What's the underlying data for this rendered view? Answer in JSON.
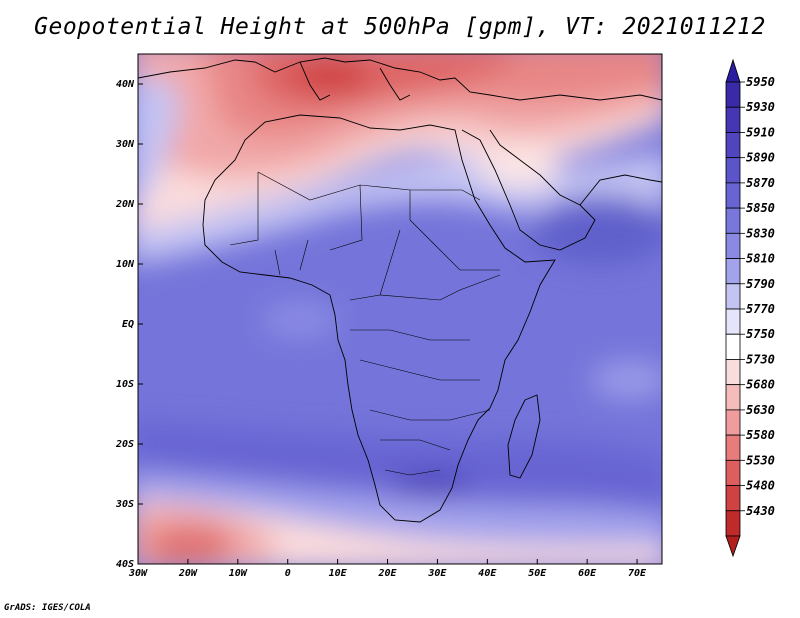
{
  "title": "Geopotential Height at 500hPa [gpm], VT: 2021011212",
  "credit": "GrADS: IGES/COLA",
  "map": {
    "lon_ticks": [
      {
        "value": -30,
        "label": "30W"
      },
      {
        "value": -20,
        "label": "20W"
      },
      {
        "value": -10,
        "label": "10W"
      },
      {
        "value": 0,
        "label": "0"
      },
      {
        "value": 10,
        "label": "10E"
      },
      {
        "value": 20,
        "label": "20E"
      },
      {
        "value": 30,
        "label": "30E"
      },
      {
        "value": 40,
        "label": "40E"
      },
      {
        "value": 50,
        "label": "50E"
      },
      {
        "value": 60,
        "label": "60E"
      },
      {
        "value": 70,
        "label": "70E"
      }
    ],
    "lat_ticks": [
      {
        "value": 40,
        "label": "40N"
      },
      {
        "value": 30,
        "label": "30N"
      },
      {
        "value": 20,
        "label": "20N"
      },
      {
        "value": 10,
        "label": "10N"
      },
      {
        "value": 0,
        "label": "EQ"
      },
      {
        "value": -10,
        "label": "10S"
      },
      {
        "value": -20,
        "label": "20S"
      },
      {
        "value": -30,
        "label": "30S"
      },
      {
        "value": -40,
        "label": "40S"
      }
    ],
    "lon_range": [
      -30,
      75
    ],
    "lat_range": [
      -40,
      45
    ]
  },
  "colorbar": {
    "levels": [
      {
        "label": "5950",
        "color": "#3a2aa8"
      },
      {
        "label": "5930",
        "color": "#4537b4"
      },
      {
        "label": "5910",
        "color": "#5045bf"
      },
      {
        "label": "5890",
        "color": "#5c55c9"
      },
      {
        "label": "5870",
        "color": "#6865d3"
      },
      {
        "label": "5850",
        "color": "#7878dc"
      },
      {
        "label": "5830",
        "color": "#8a8ae4"
      },
      {
        "label": "5810",
        "color": "#a3a3ec"
      },
      {
        "label": "5790",
        "color": "#c4c4f3"
      },
      {
        "label": "5770",
        "color": "#e4e4fa"
      },
      {
        "label": "5750",
        "color": "#ffffff"
      },
      {
        "label": "5730",
        "color": "#fbdcdc"
      },
      {
        "label": "5680",
        "color": "#f5bcbc"
      },
      {
        "label": "5630",
        "color": "#ee9c9c"
      },
      {
        "label": "5580",
        "color": "#e67c7c"
      },
      {
        "label": "5530",
        "color": "#dc5e5e"
      },
      {
        "label": "5480",
        "color": "#cf4242"
      },
      {
        "label": "5430",
        "color": "#bf2b2b"
      }
    ],
    "top_color": "#2a1fa0",
    "bottom_color": "#b01e1e"
  }
}
